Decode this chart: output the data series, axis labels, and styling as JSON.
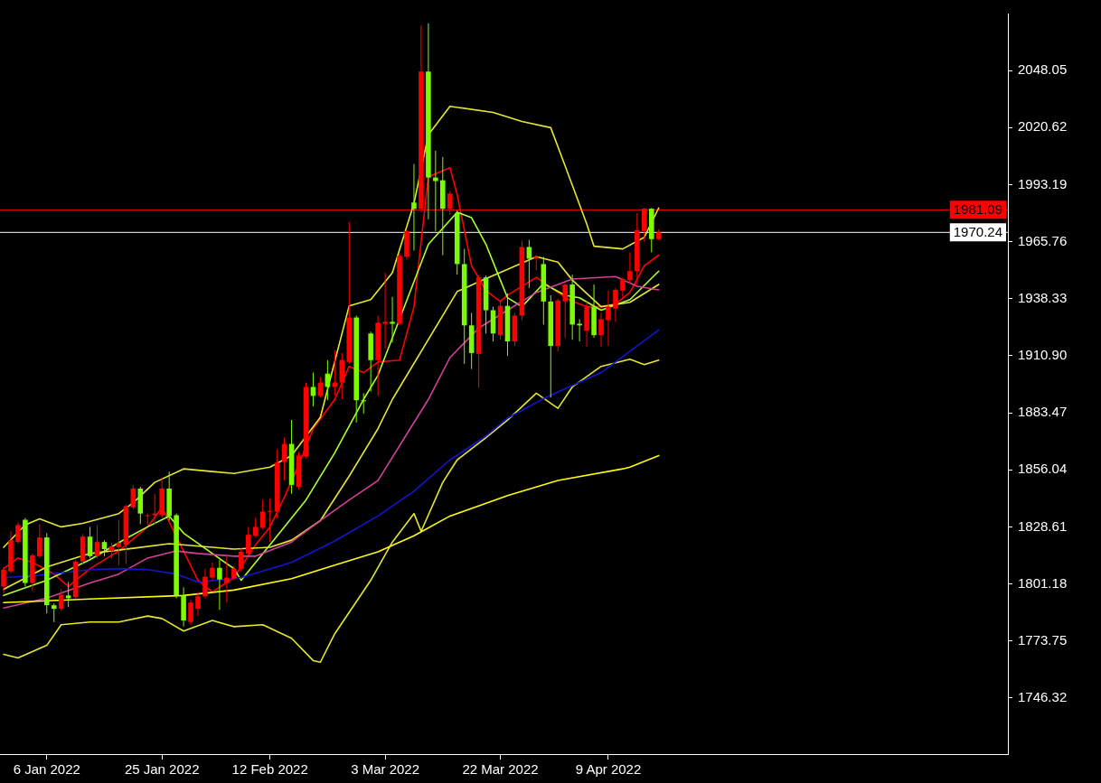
{
  "chart_data": {
    "type": "candlestick",
    "categories": [
      null,
      null,
      null,
      null,
      null,
      null,
      "6 Jan 2022",
      null,
      null,
      null,
      null,
      null,
      null,
      null,
      null,
      null,
      null,
      null,
      null,
      null,
      null,
      null,
      "25 Jan 2022",
      null,
      null,
      null,
      null,
      null,
      null,
      null,
      null,
      null,
      null,
      null,
      null,
      null,
      null,
      "12 Feb 2022",
      null,
      null,
      null,
      null,
      null,
      null,
      null,
      null,
      null,
      null,
      null,
      null,
      null,
      null,
      null,
      "3 Mar 2022",
      null,
      null,
      null,
      null,
      null,
      null,
      null,
      null,
      null,
      null,
      null,
      null,
      null,
      null,
      null,
      "22 Mar 2022",
      null,
      null,
      null,
      null,
      null,
      null,
      null,
      null,
      null,
      null,
      null,
      null,
      null,
      null,
      "9 Apr 2022",
      null,
      null,
      null,
      null,
      null,
      null,
      null,
      null,
      null,
      null,
      null,
      null,
      null,
      null,
      null,
      null,
      null,
      null,
      null,
      null,
      null,
      null,
      null,
      null,
      null,
      null,
      null,
      null,
      null,
      null,
      null,
      null,
      null,
      null,
      null,
      null,
      null,
      null,
      null,
      null,
      null,
      null,
      null,
      null,
      null,
      null,
      null,
      null,
      null,
      null,
      null,
      null,
      null,
      null,
      null
    ],
    "ohlc": [
      [
        1799.9,
        1809.3,
        1796.5,
        1808.0
      ],
      [
        1807.2,
        1826.5,
        1806.3,
        1822.2
      ],
      [
        1821.3,
        1830.8,
        1820.5,
        1829.5
      ],
      [
        1832.0,
        1832.9,
        1799.9,
        1801.6
      ],
      [
        1801.6,
        1815.8,
        1797.8,
        1814.9
      ],
      [
        1814.5,
        1829.9,
        1813.6,
        1823.5
      ],
      [
        1823.5,
        1825.6,
        1787.0,
        1790.9
      ],
      [
        1790.9,
        1791.8,
        1782.8,
        1789.2
      ],
      [
        1789.2,
        1798.6,
        1788.3,
        1796.0
      ],
      [
        1795.6,
        1802.0,
        1790.0,
        1794.3
      ],
      [
        1794.8,
        1812.8,
        1793.9,
        1811.9
      ],
      [
        1811.9,
        1825.2,
        1811.0,
        1823.9
      ],
      [
        1823.9,
        1828.6,
        1813.6,
        1814.5
      ],
      [
        1814.5,
        1829.5,
        1813.6,
        1821.3
      ],
      [
        1821.3,
        1822.2,
        1814.5,
        1817.9
      ],
      [
        1817.0,
        1820.9,
        1813.6,
        1819.2
      ],
      [
        1818.8,
        1832.0,
        1810.2,
        1820.9
      ],
      [
        1820.0,
        1839.3,
        1810.6,
        1838.5
      ],
      [
        1838.0,
        1848.8,
        1837.2,
        1847.0
      ],
      [
        1847.0,
        1847.9,
        1829.9,
        1835.0
      ],
      [
        1833.8,
        1835.0,
        1829.5,
        1834.2
      ],
      [
        1834.2,
        1844.5,
        1829.9,
        1835.0
      ],
      [
        1834.2,
        1852.2,
        1832.9,
        1847.0
      ],
      [
        1847.0,
        1855.2,
        1831.6,
        1833.8
      ],
      [
        1834.2,
        1835.0,
        1794.3,
        1795.6
      ],
      [
        1795.6,
        1799.5,
        1780.7,
        1783.6
      ],
      [
        1782.8,
        1793.5,
        1781.5,
        1792.2
      ],
      [
        1789.2,
        1797.3,
        1785.7,
        1795.2
      ],
      [
        1795.2,
        1808.5,
        1794.3,
        1804.6
      ],
      [
        1804.2,
        1811.5,
        1802.9,
        1808.9
      ],
      [
        1808.9,
        1812.8,
        1788.7,
        1803.3
      ],
      [
        1801.6,
        1814.9,
        1792.2,
        1804.2
      ],
      [
        1803.7,
        1809.8,
        1802.9,
        1808.5
      ],
      [
        1808.5,
        1818.3,
        1807.2,
        1816.6
      ],
      [
        1815.8,
        1828.6,
        1814.9,
        1824.8
      ],
      [
        1824.3,
        1832.9,
        1823.5,
        1828.6
      ],
      [
        1828.2,
        1841.6,
        1827.3,
        1835.9
      ],
      [
        1835.9,
        1842.3,
        1821.3,
        1836.3
      ],
      [
        1835.9,
        1865.9,
        1832.9,
        1859.5
      ],
      [
        1859.9,
        1871.5,
        1850.9,
        1868.5
      ],
      [
        1868.5,
        1880.0,
        1844.5,
        1848.8
      ],
      [
        1847.9,
        1864.6,
        1846.6,
        1862.9
      ],
      [
        1862.5,
        1898.0,
        1861.6,
        1895.9
      ],
      [
        1895.9,
        1902.8,
        1886.5,
        1891.6
      ],
      [
        1891.6,
        1900.6,
        1890.8,
        1898.0
      ],
      [
        1902.3,
        1908.8,
        1889.5,
        1895.9
      ],
      [
        1895.9,
        1913.5,
        1891.6,
        1898.0
      ],
      [
        1898.0,
        1912.2,
        1889.9,
        1908.8
      ],
      [
        1907.9,
        1975.2,
        1907.0,
        1929.3
      ],
      [
        1929.3,
        1930.2,
        1878.8,
        1889.5
      ],
      [
        1889.5,
        1892.9,
        1883.0,
        1889.0
      ],
      [
        1921.6,
        1922.5,
        1893.8,
        1908.8
      ],
      [
        1908.8,
        1930.2,
        1891.6,
        1926.8
      ],
      [
        1926.3,
        1950.8,
        1914.3,
        1927.2
      ],
      [
        1927.2,
        1939.2,
        1917.3,
        1926.3
      ],
      [
        1926.3,
        1960.2,
        1925.5,
        1958.9
      ],
      [
        1958.5,
        1971.3,
        1957.2,
        1970.9
      ],
      [
        1984.6,
        2003.1,
        1961.5,
        1981.6
      ],
      [
        1981.6,
        2069.9,
        1979.9,
        2047.6
      ],
      [
        2047.6,
        2070.8,
        1976.5,
        1996.6
      ],
      [
        1996.6,
        2009.5,
        1970.9,
        1994.9
      ],
      [
        1995.3,
        2006.5,
        1959.3,
        1981.6
      ],
      [
        1981.6,
        1990.2,
        1978.6,
        1988.9
      ],
      [
        1979.5,
        1980.8,
        1949.9,
        1955.0
      ],
      [
        1955.0,
        1962.3,
        1907.0,
        1925.5
      ],
      [
        1925.5,
        1931.5,
        1904.5,
        1912.2
      ],
      [
        1911.8,
        1949.5,
        1895.5,
        1948.6
      ],
      [
        1948.6,
        1949.5,
        1921.6,
        1932.8
      ],
      [
        1932.8,
        1934.5,
        1917.8,
        1921.6
      ],
      [
        1920.8,
        1937.0,
        1918.6,
        1934.9
      ],
      [
        1934.9,
        1940.9,
        1910.9,
        1917.8
      ],
      [
        1917.8,
        1931.5,
        1915.6,
        1930.2
      ],
      [
        1930.2,
        1966.2,
        1928.0,
        1963.2
      ],
      [
        1963.2,
        1966.6,
        1943.5,
        1957.6
      ],
      [
        1957.6,
        1959.3,
        1952.0,
        1958.5
      ],
      [
        1955.0,
        1958.5,
        1925.9,
        1937.0
      ],
      [
        1937.0,
        1940.0,
        1890.8,
        1915.6
      ],
      [
        1915.6,
        1938.3,
        1913.0,
        1937.5
      ],
      [
        1937.0,
        1945.6,
        1919.5,
        1945.2
      ],
      [
        1945.2,
        1949.9,
        1918.6,
        1925.9
      ],
      [
        1926.3,
        1928.5,
        1917.8,
        1925.5
      ],
      [
        1922.9,
        1937.0,
        1915.2,
        1934.5
      ],
      [
        1934.5,
        1945.2,
        1919.5,
        1920.8
      ],
      [
        1920.8,
        1931.5,
        1915.2,
        1928.5
      ],
      [
        1928.0,
        1942.2,
        1915.6,
        1934.5
      ],
      [
        1933.6,
        1943.5,
        1927.2,
        1942.6
      ],
      [
        1942.2,
        1948.6,
        1938.8,
        1947.8
      ],
      [
        1947.3,
        1960.6,
        1945.6,
        1951.6
      ],
      [
        1951.6,
        1979.5,
        1945.2,
        1971.3
      ],
      [
        1970.9,
        1982.0,
        1965.8,
        1981.6
      ],
      [
        1981.6,
        1982.0,
        1960.6,
        1967.0
      ],
      [
        1967.0,
        1971.7,
        1966.6,
        1970.24
      ],
      null,
      null,
      null,
      null,
      null,
      null,
      null,
      null,
      null,
      null,
      null,
      null,
      null,
      null,
      null,
      null,
      null,
      null,
      null,
      null,
      null,
      null,
      null,
      null,
      null,
      null,
      null,
      null,
      null,
      null,
      null,
      null,
      null,
      null,
      null,
      null,
      null,
      null,
      null,
      null,
      null,
      null,
      null,
      null,
      null,
      null,
      null,
      null
    ],
    "colors": [
      "#ff0000",
      "#ff0000",
      "#ff0000",
      "#7cfc00",
      "#ff0000",
      "#ff0000",
      "#7cfc00",
      "#7cfc00",
      "#ff0000",
      "#7cfc00",
      "#ff0000",
      "#ff0000",
      "#7cfc00",
      "#ff0000",
      "#7cfc00",
      "#ff0000",
      "#ff0000",
      "#ff0000",
      "#ff0000",
      "#7cfc00",
      "#ff0000",
      "#ff0000",
      "#ff0000",
      "#7cfc00",
      "#7cfc00",
      "#7cfc00",
      "#ff0000",
      "#ff0000",
      "#ff0000",
      "#ff0000",
      "#7cfc00",
      "#ff0000",
      "#ff0000",
      "#ff0000",
      "#ff0000",
      "#ff0000",
      "#ff0000",
      "#ff0000",
      "#ff0000",
      "#ff0000",
      "#7cfc00",
      "#ff0000",
      "#ff0000",
      "#7cfc00",
      "#ff0000",
      "#7cfc00",
      "#ff0000",
      "#ff0000",
      "#ff0000",
      "#7cfc00",
      "#7cfc00",
      "#7cfc00",
      "#ff0000",
      "#ff0000",
      "#7cfc00",
      "#ff0000",
      "#ff0000",
      "#7cfc00",
      "#ff0000",
      "#7cfc00",
      "#7cfc00",
      "#7cfc00",
      "#ff0000",
      "#7cfc00",
      "#7cfc00",
      "#7cfc00",
      "#ff0000",
      "#7cfc00",
      "#7cfc00",
      "#ff0000",
      "#7cfc00",
      "#ff0000",
      "#ff0000",
      "#7cfc00",
      "#ff0000",
      "#7cfc00",
      "#7cfc00",
      "#ff0000",
      "#ff0000",
      "#7cfc00",
      "#7cfc00",
      "#ff0000",
      "#7cfc00",
      "#ff0000",
      "#ff0000",
      "#ff0000",
      "#ff0000",
      "#ff0000",
      "#ff0000",
      "#ff0000",
      "#7cfc00",
      "#ff0000",
      null,
      null,
      null,
      null,
      null,
      null,
      null,
      null,
      null,
      null,
      null,
      null,
      null,
      null,
      null,
      null,
      null,
      null,
      null,
      null,
      null,
      null,
      null,
      null,
      null,
      null,
      null,
      null,
      null,
      null,
      null,
      null,
      null,
      null,
      null,
      null,
      null,
      null,
      null,
      null,
      null,
      null,
      null,
      null,
      null,
      null,
      null,
      null
    ],
    "series": [
      {
        "type": "line",
        "color": "#ffff00",
        "values": [
          1792.2,
          null,
          null,
          null,
          null,
          null,
          null,
          null,
          null,
          null,
          null,
          null,
          1793.9,
          null,
          null,
          null,
          null,
          null,
          null,
          null,
          null,
          null,
          null,
          null,
          null,
          1795.6,
          null,
          null,
          null,
          null,
          null,
          null,
          1798.2,
          null,
          null,
          null,
          null,
          null,
          null,
          null,
          1803.7,
          null,
          null,
          null,
          null,
          null,
          1810.2,
          null,
          null,
          null,
          null,
          null,
          1816.6,
          null,
          null,
          null,
          null,
          1824.3,
          null,
          null,
          null,
          null,
          1833.8,
          null,
          null,
          null,
          null,
          null,
          null,
          null,
          1843.6,
          null,
          null,
          null,
          null,
          null,
          null,
          1850.9,
          null,
          null,
          null,
          null,
          null,
          null,
          null,
          null,
          1856.5,
          1857.3,
          null,
          null,
          null,
          1862.9,
          null,
          null,
          null,
          null,
          null,
          null,
          null,
          null,
          null,
          null,
          null,
          null,
          null,
          null,
          null,
          null,
          null,
          null,
          null,
          null,
          null,
          null,
          null,
          null,
          null,
          null,
          null,
          null,
          null,
          null,
          null,
          null,
          null,
          null,
          null,
          null,
          null,
          null,
          null,
          null,
          null,
          null,
          null,
          null,
          null,
          null,
          null,
          null
        ]
      },
      {
        "type": "line",
        "color": "#1414d2",
        "values": [
          1804.2,
          null,
          null,
          null,
          1805.0,
          null,
          null,
          null,
          null,
          null,
          null,
          null,
          1808.0,
          null,
          null,
          null,
          1808.5,
          null,
          null,
          null,
          1808.0,
          null,
          null,
          null,
          1805.9,
          null,
          null,
          1802.0,
          null,
          null,
          null,
          null,
          null,
          1804.2,
          null,
          null,
          null,
          null,
          null,
          null,
          1811.5,
          null,
          null,
          null,
          null,
          null,
          1821.8,
          null,
          null,
          null,
          null,
          null,
          1833.8,
          null,
          null,
          null,
          null,
          1845.8,
          null,
          null,
          null,
          null,
          1860.8,
          null,
          null,
          null,
          null,
          1872.3,
          null,
          null,
          1880.9,
          null,
          null,
          null,
          null,
          1890.3,
          null,
          null,
          null,
          null,
          null,
          null,
          null,
          1902.8,
          null,
          null,
          null,
          null,
          null,
          null,
          null,
          1923.3,
          null,
          null,
          null,
          null,
          null,
          null,
          null,
          null,
          null,
          null,
          null,
          null,
          null,
          null,
          null,
          null,
          null,
          null,
          null,
          null,
          null,
          null,
          null,
          null,
          null,
          null,
          null,
          null,
          null,
          null,
          null,
          null,
          null,
          null,
          null,
          null,
          null,
          null,
          null,
          null,
          null,
          null,
          null,
          null,
          null,
          null,
          null,
          null
        ]
      },
      {
        "type": "line",
        "color": "#d2419b",
        "values": [
          1789.6,
          null,
          null,
          null,
          null,
          null,
          1794.3,
          null,
          null,
          null,
          null,
          null,
          1801.6,
          null,
          null,
          null,
          1805.9,
          null,
          null,
          null,
          1813.6,
          null,
          null,
          null,
          1817.0,
          null,
          null,
          1815.8,
          null,
          null,
          null,
          null,
          1814.5,
          null,
          null,
          1814.5,
          null,
          null,
          null,
          null,
          1821.3,
          null,
          null,
          null,
          1831.6,
          null,
          null,
          null,
          1841.5,
          null,
          null,
          null,
          1850.9,
          null,
          null,
          null,
          null,
          null,
          null,
          1889.9,
          null,
          null,
          1910.0,
          null,
          null,
          null,
          1924.2,
          null,
          null,
          null,
          1932.8,
          null,
          null,
          null,
          1941.3,
          null,
          null,
          null,
          null,
          1947.8,
          null,
          null,
          null,
          null,
          null,
          1949.0,
          null,
          null,
          1944.3,
          null,
          null,
          1942.6,
          null,
          null,
          null,
          null,
          null,
          null,
          null,
          null,
          null,
          null,
          null,
          null,
          null,
          null,
          null,
          null,
          null,
          null,
          null,
          null,
          null,
          null,
          null,
          null,
          null,
          null,
          null,
          null,
          null,
          null,
          null,
          null,
          null,
          null,
          null,
          null,
          null,
          null,
          null,
          null,
          null,
          null,
          null,
          null,
          null,
          null,
          null,
          null
        ]
      },
      {
        "type": "line",
        "color": "#e6e632",
        "values": [
          1818.8,
          null,
          null,
          1829.5,
          null,
          1832.5,
          null,
          null,
          1828.6,
          null,
          null,
          1830.3,
          null,
          null,
          null,
          null,
          1835.0,
          null,
          1840.2,
          null,
          null,
          1850.0,
          null,
          null,
          null,
          1856.5,
          null,
          null,
          null,
          1855.2,
          null,
          null,
          1854.3,
          null,
          null,
          null,
          null,
          1857.3,
          null,
          null,
          1862.9,
          null,
          null,
          null,
          1881.3,
          null,
          null,
          null,
          1934.9,
          null,
          null,
          1937.9,
          null,
          null,
          1950.8,
          null,
          null,
          1984.2,
          null,
          2017.2,
          null,
          null,
          2030.9,
          null,
          null,
          null,
          null,
          null,
          2027.9,
          null,
          null,
          null,
          2023.6,
          null,
          null,
          null,
          2020.6,
          null,
          2002.2,
          null,
          null,
          1974.3,
          1963.6,
          null,
          null,
          null,
          1962.3,
          null,
          null,
          1967.9,
          null,
          1982.0,
          null,
          null,
          null,
          null,
          null,
          null,
          null,
          null,
          null,
          null,
          null,
          null,
          null,
          null,
          null,
          null,
          null,
          null,
          null,
          null,
          null,
          null,
          null,
          null,
          null,
          null,
          null,
          null,
          null,
          null,
          null,
          null,
          null,
          null,
          null,
          null,
          null,
          null,
          null,
          null,
          null,
          null,
          null,
          null,
          null,
          null,
          null,
          null
        ]
      },
      {
        "type": "line",
        "color": "#e6e632",
        "values": [
          1798.6,
          null,
          null,
          null,
          null,
          null,
          1809.3,
          null,
          null,
          null,
          null,
          null,
          1815.8,
          null,
          null,
          null,
          null,
          null,
          1818.3,
          null,
          null,
          null,
          null,
          1820.5,
          null,
          null,
          null,
          null,
          null,
          1818.8,
          null,
          null,
          1817.9,
          null,
          null,
          null,
          null,
          1818.8,
          null,
          null,
          1822.2,
          null,
          null,
          null,
          1831.6,
          null,
          null,
          null,
          1853.0,
          null,
          null,
          null,
          1875.8,
          null,
          1889.9,
          null,
          null,
          null,
          null,
          null,
          null,
          null,
          null,
          1941.8,
          null,
          null,
          1946.5,
          null,
          null,
          null,
          1952.5,
          null,
          null,
          null,
          1958.5,
          null,
          null,
          1955.9,
          null,
          1947.3,
          null,
          null,
          null,
          1934.5,
          null,
          null,
          null,
          1936.6,
          null,
          null,
          null,
          1945.2,
          null,
          null,
          null,
          null,
          null,
          null,
          null,
          null,
          null,
          null,
          null,
          null,
          null,
          null,
          null,
          null,
          null,
          null,
          null,
          null,
          null,
          null,
          null,
          null,
          null,
          null,
          null,
          null,
          null,
          null,
          null,
          null,
          null,
          null,
          null,
          null,
          null,
          null,
          null,
          null,
          null,
          null,
          null,
          null,
          null,
          null,
          null,
          null
        ]
      },
      {
        "type": "line",
        "color": "#e6e632",
        "values": [
          1767.3,
          null,
          1765.6,
          null,
          null,
          null,
          1771.6,
          null,
          1781.5,
          null,
          null,
          null,
          1782.8,
          null,
          null,
          null,
          1782.8,
          null,
          null,
          null,
          1785.7,
          null,
          1784.5,
          null,
          null,
          1778.5,
          null,
          null,
          null,
          1783.6,
          null,
          null,
          1780.6,
          null,
          null,
          null,
          1781.5,
          null,
          null,
          null,
          1775.0,
          null,
          null,
          1764.3,
          1763.5,
          null,
          1777.2,
          null,
          null,
          null,
          null,
          1802.9,
          null,
          null,
          1821.3,
          null,
          null,
          1835.0,
          1826.5,
          null,
          null,
          1850.0,
          null,
          1860.8,
          null,
          null,
          null,
          1871.5,
          null,
          null,
          1880.0,
          null,
          null,
          null,
          1892.9,
          null,
          null,
          1885.6,
          null,
          1895.9,
          null,
          null,
          null,
          1905.8,
          null,
          null,
          null,
          1909.2,
          null,
          1906.6,
          null,
          1908.8,
          null,
          null,
          null,
          null,
          null,
          null,
          null,
          null,
          null,
          null,
          null,
          null,
          null,
          null,
          null,
          null,
          null,
          null,
          null,
          null,
          null,
          null,
          null,
          null,
          null,
          null,
          null,
          null,
          null,
          null,
          null,
          null,
          null,
          null,
          null,
          null,
          null,
          null,
          null,
          null,
          null,
          null,
          null,
          null,
          null,
          null,
          null,
          null
        ]
      },
      {
        "type": "line",
        "color": "#adff2f",
        "values": [
          1795.6,
          null,
          null,
          null,
          null,
          null,
          1802.9,
          null,
          null,
          null,
          null,
          null,
          1812.8,
          null,
          null,
          null,
          null,
          1823.0,
          null,
          null,
          1828.6,
          null,
          null,
          1833.8,
          null,
          1825.6,
          null,
          null,
          null,
          1815.8,
          null,
          null,
          1808.5,
          1802.9,
          null,
          null,
          null,
          1820.0,
          null,
          null,
          null,
          null,
          1841.5,
          null,
          null,
          null,
          1864.2,
          null,
          null,
          null,
          1889.9,
          null,
          1901.5,
          null,
          null,
          null,
          null,
          null,
          null,
          1964.5,
          null,
          null,
          null,
          1979.9,
          null,
          1977.3,
          null,
          1964.5,
          null,
          1947.3,
          1938.8,
          null,
          1934.5,
          null,
          null,
          1945.6,
          null,
          null,
          1940.0,
          null,
          1938.8,
          null,
          null,
          1932.8,
          null,
          null,
          null,
          1937.9,
          null,
          null,
          null,
          1951.6,
          null,
          null,
          null,
          null,
          null,
          null,
          null,
          null,
          null,
          null,
          null,
          null,
          null,
          null,
          null,
          null,
          null,
          null,
          null,
          null,
          null,
          null,
          null,
          null,
          null,
          null,
          null,
          null,
          null,
          null,
          null,
          null,
          null,
          null,
          null,
          null,
          null,
          null,
          null,
          null,
          null,
          null,
          null,
          null,
          null,
          null,
          null,
          null
        ]
      },
      {
        "type": "line",
        "color": "#ff0000",
        "values": [
          1808.5,
          null,
          1813.6,
          null,
          1811.5,
          null,
          null,
          1805.9,
          null,
          1799.9,
          null,
          null,
          1808.5,
          null,
          null,
          null,
          1817.0,
          null,
          null,
          null,
          1828.6,
          null,
          1838.0,
          null,
          null,
          null,
          null,
          1802.9,
          null,
          1797.3,
          null,
          null,
          1804.2,
          null,
          null,
          1820.0,
          null,
          1828.6,
          null,
          1842.8,
          null,
          1858.6,
          null,
          1875.8,
          null,
          null,
          1889.9,
          null,
          1905.8,
          null,
          1902.8,
          null,
          1907.9,
          null,
          null,
          1908.8,
          null,
          1934.5,
          null,
          1997.0,
          null,
          null,
          2001.3,
          1988.5,
          null,
          1954.2,
          null,
          1942.2,
          null,
          1937.0,
          1940.0,
          null,
          null,
          null,
          1948.6,
          null,
          null,
          1941.3,
          null,
          1937.0,
          null,
          1934.5,
          null,
          1934.5,
          null,
          1935.8,
          null,
          1941.3,
          null,
          1954.2,
          null,
          1959.3,
          null,
          null,
          null,
          null,
          null,
          null,
          null,
          null,
          null,
          null,
          null,
          null,
          null,
          null,
          null,
          null,
          null,
          null,
          null,
          null,
          null,
          null,
          null,
          null,
          null,
          null,
          null,
          null,
          null,
          null,
          null,
          null,
          null,
          null,
          null,
          null,
          null,
          null,
          null,
          null,
          null,
          null,
          null,
          null,
          null,
          null,
          null,
          null
        ]
      }
    ],
    "ylim": [
      1719.3,
      2075.5
    ],
    "yticks": [
      1746.32,
      1773.75,
      1801.18,
      1828.61,
      1856.04,
      1883.47,
      {
        "value": 1910.9,
        "label": "1910.90"
      },
      1938.33,
      1965.76,
      1993.19,
      2020.62,
      2048.05
    ],
    "ref_lines": [
      {
        "axis": "y",
        "value": 1981.09,
        "label": "1981.09",
        "color": "#ff0000"
      },
      {
        "axis": "y",
        "value": 1970.24,
        "label": "1970.24",
        "color": "#ffffff"
      }
    ],
    "grid": false,
    "legend": false,
    "marker": "none",
    "line_style": "solid"
  }
}
